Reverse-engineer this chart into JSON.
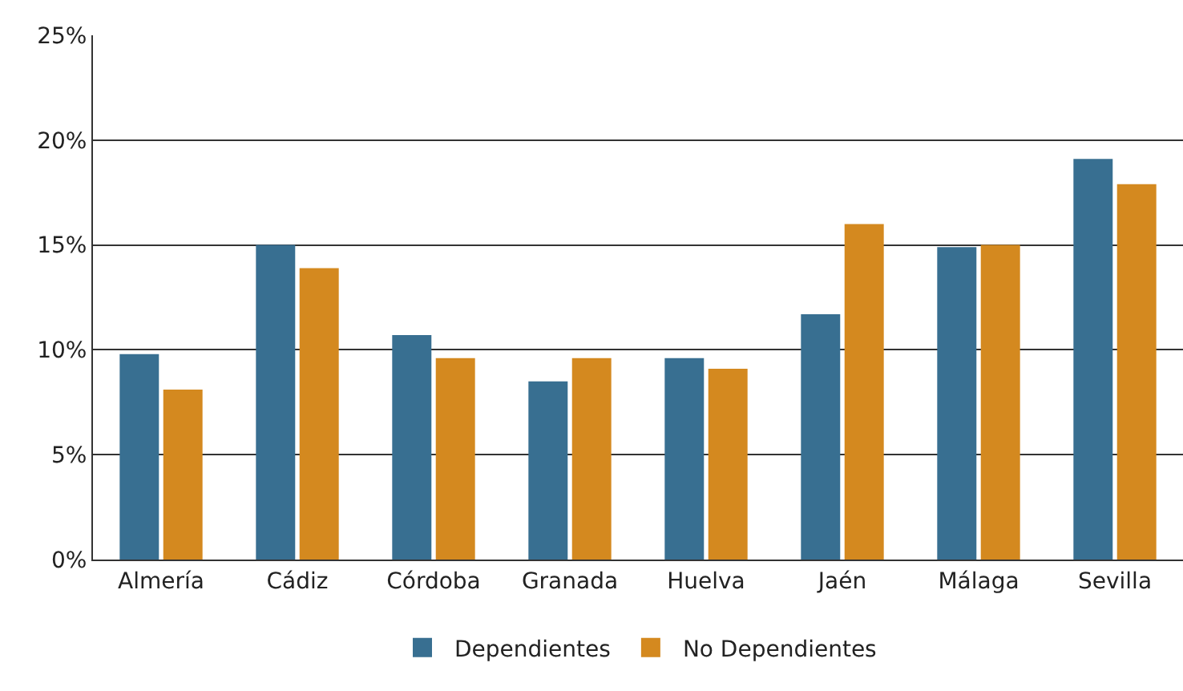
{
  "chart_data": {
    "type": "bar",
    "categories": [
      "Almería",
      "Cádiz",
      "Córdoba",
      "Granada",
      "Huelva",
      "Jaén",
      "Málaga",
      "Sevilla"
    ],
    "series": [
      {
        "name": "Dependientes",
        "color": "#386f91",
        "values": [
          9.8,
          15.0,
          10.7,
          8.5,
          9.6,
          11.7,
          14.9,
          19.1
        ]
      },
      {
        "name": "No Dependientes",
        "color": "#d4891f",
        "values": [
          8.1,
          13.9,
          9.6,
          9.6,
          9.1,
          16.0,
          15.0,
          17.9
        ]
      }
    ],
    "ylim": [
      0,
      25
    ],
    "yticks": [
      {
        "value": 0,
        "label": "0%"
      },
      {
        "value": 5,
        "label": "5%"
      },
      {
        "value": 10,
        "label": "10%"
      },
      {
        "value": 15,
        "label": "15%"
      },
      {
        "value": 20,
        "label": "20%"
      },
      {
        "value": 25,
        "label": "25%"
      }
    ],
    "grid": "y",
    "legend": "bottom"
  }
}
